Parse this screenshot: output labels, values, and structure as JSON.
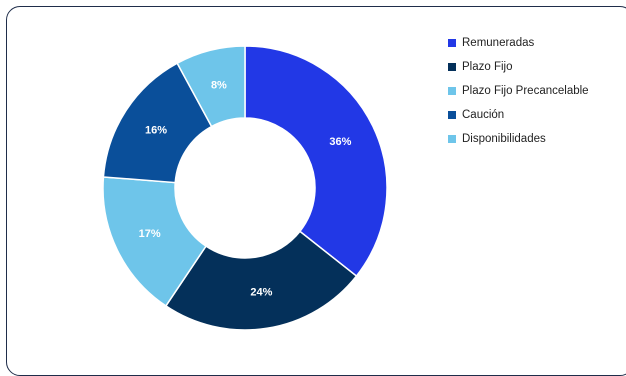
{
  "chart_data": {
    "type": "pie",
    "donut": true,
    "title": "",
    "legend_position": "right",
    "categories": [
      "Remuneradas",
      "Plazo Fijo",
      "Plazo Fijo Precancelable",
      "Caución",
      "Disponibilidades"
    ],
    "values": [
      36,
      24,
      17,
      16,
      8
    ],
    "data_labels": [
      "36%",
      "24%",
      "17%",
      "16%",
      "8%"
    ],
    "colors": [
      "#2238e6",
      "#04305a",
      "#6ec5ea",
      "#0a4f9a",
      "#6ec5ea"
    ]
  }
}
